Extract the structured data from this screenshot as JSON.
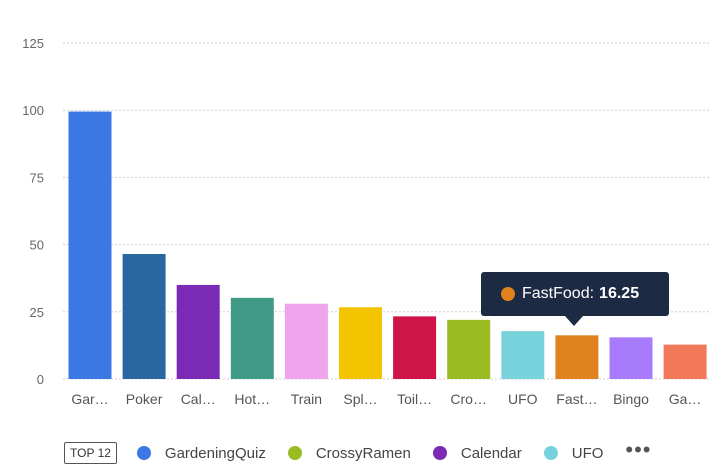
{
  "chart_data": {
    "type": "bar",
    "categories": [
      "Gar…",
      "Poker",
      "Cal…",
      "Hot…",
      "Train",
      "Spl…",
      "Toil…",
      "Cro…",
      "UFO",
      "Fast…",
      "Bingo",
      "Ga…"
    ],
    "values": [
      99.5,
      46.5,
      35,
      30.2,
      28,
      26.7,
      23.3,
      22,
      17.8,
      16.25,
      15.5,
      12.8
    ],
    "colors": [
      "#3b78e3",
      "#2a67a0",
      "#7a2ab5",
      "#3f9b86",
      "#f0a4ed",
      "#f5c400",
      "#cf1448",
      "#9bbb22",
      "#78d2db",
      "#e0831f",
      "#a87bfc",
      "#f2785a"
    ],
    "yticks": [
      0,
      25,
      50,
      75,
      100,
      125
    ],
    "ylim": [
      0,
      125
    ],
    "grid": true,
    "title": "",
    "xlabel": "",
    "ylabel": ""
  },
  "tooltip": {
    "series": "FastFood",
    "value": "16.25",
    "color": "#e0831f"
  },
  "legend": {
    "badge": "TOP 12",
    "items": [
      {
        "label": "GardeningQuiz",
        "color": "#3b78e3"
      },
      {
        "label": "CrossyRamen",
        "color": "#9bbb22"
      },
      {
        "label": "Calendar",
        "color": "#7a2ab5"
      },
      {
        "label": "UFO",
        "color": "#78d2db"
      }
    ],
    "more": "•••"
  }
}
